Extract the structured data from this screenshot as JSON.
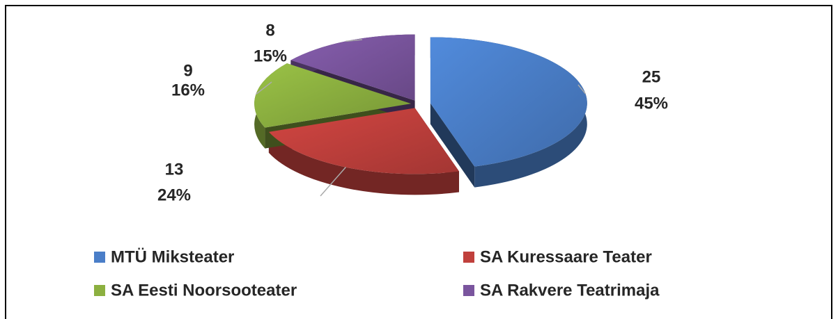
{
  "chart_data": {
    "type": "pie",
    "categories": [
      "MTÜ Miksteater",
      "SA Kuressaare Teater",
      "SA Eesti Noorsooteater",
      "SA Rakvere Teatrimaja"
    ],
    "values": [
      25,
      13,
      9,
      8
    ],
    "percent_labels": [
      "45%",
      "24%",
      "16%",
      "15%"
    ],
    "colors": [
      "#4a7ec8",
      "#c0403c",
      "#8cb040",
      "#7a559e"
    ],
    "legend": "bottom"
  }
}
